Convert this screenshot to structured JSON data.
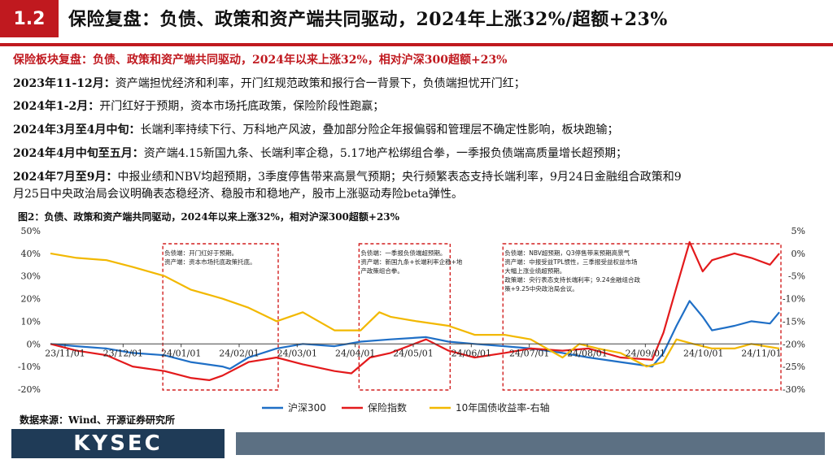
{
  "header": {
    "section_number": "1.2",
    "title": "保险复盘：负债、政策和资产端共同驱动，2024年上涨32%/超额+23%"
  },
  "summary_heading": "保险板块复盘：负债、政策和资产端共同驱动，2024年以来上涨32%，相对沪深300超额+23%",
  "paragraphs": [
    {
      "label": "2023年11-12月：",
      "text": "资产端担忧经济和利率，开门红规范政策和报行合一背景下，负债端担忧开门红；"
    },
    {
      "label": "2024年1-2月：",
      "text": "开门红好于预期，资本市场托底政策，保险阶段性跑赢；"
    },
    {
      "label": "2024年3月至4月中旬：",
      "text": "长端利率持续下行、万科地产风波，叠加部分险企年报偏弱和管理层不确定性影响，板块跑输；"
    },
    {
      "label": "2024年4月中旬至五月：",
      "text": "资产端4.15新国九条、长端利率企稳，5.17地产松绑组合拳，一季报负债端高质量增长超预期；"
    },
    {
      "label": "2024年7月至9月：",
      "text": "中报业绩和NBV均超预期，3季度停售带来高景气预期；央行频繁表态支持长端利率，9月24日金融组合政策和9",
      "text2": "月25日中央政治局会议明确表态稳经济、稳股市和稳地产，股市上涨驱动寿险beta弹性。"
    }
  ],
  "figure_title": "图2：负债、政策和资产端共同驱动，2024年以来上涨32%，相对沪深300超额+23%",
  "source": "数据来源：Wind、开源证券研究所",
  "footer": {
    "logo": "KYSEC"
  },
  "colors": {
    "accent": "#c0191f",
    "hs300": "#1f6fc6",
    "insurance": "#e31a1c",
    "bond": "#f2b800",
    "logo_bg": "#1f3b57",
    "footer_bar": "#5c7083"
  },
  "chart_data": {
    "type": "line",
    "x_ticks": [
      "23/11/01",
      "23/12/01",
      "24/01/01",
      "24/02/01",
      "24/03/01",
      "24/04/01",
      "24/05/01",
      "24/06/01",
      "24/07/01",
      "24/08/01",
      "24/09/01",
      "24/10/01",
      "24/11/01"
    ],
    "x_range": [
      "2023-11-01",
      "2024-11-25"
    ],
    "left_axis": {
      "ticks": [
        "50%",
        "40%",
        "30%",
        "20%",
        "10%",
        "0%",
        "-10%",
        "-20%"
      ],
      "range": [
        -20,
        50
      ]
    },
    "right_axis": {
      "ticks": [
        "5%",
        "0%",
        "-5%",
        "-10%",
        "-15%",
        "-20%",
        "-25%",
        "-30%"
      ],
      "range": [
        -30,
        5
      ]
    },
    "series": [
      {
        "name": "沪深300",
        "axis": "left",
        "color": "#1f6fc6",
        "points": [
          [
            "2023-11-01",
            0
          ],
          [
            "2023-11-15",
            -1
          ],
          [
            "2023-12-01",
            -2
          ],
          [
            "2023-12-15",
            -4
          ],
          [
            "2024-01-01",
            -5
          ],
          [
            "2024-01-15",
            -8
          ],
          [
            "2024-02-01",
            -10
          ],
          [
            "2024-02-05",
            -11
          ],
          [
            "2024-02-15",
            -6
          ],
          [
            "2024-03-01",
            -2
          ],
          [
            "2024-03-15",
            0
          ],
          [
            "2024-04-01",
            -1
          ],
          [
            "2024-04-15",
            1
          ],
          [
            "2024-05-01",
            2
          ],
          [
            "2024-05-20",
            3
          ],
          [
            "2024-06-01",
            1
          ],
          [
            "2024-06-15",
            0
          ],
          [
            "2024-07-01",
            -1
          ],
          [
            "2024-07-15",
            -2
          ],
          [
            "2024-08-01",
            -4
          ],
          [
            "2024-08-15",
            -6
          ],
          [
            "2024-09-01",
            -8
          ],
          [
            "2024-09-18",
            -10
          ],
          [
            "2024-09-24",
            -4
          ],
          [
            "2024-10-01",
            8
          ],
          [
            "2024-10-08",
            19
          ],
          [
            "2024-10-15",
            12
          ],
          [
            "2024-10-20",
            6
          ],
          [
            "2024-11-01",
            8
          ],
          [
            "2024-11-10",
            10
          ],
          [
            "2024-11-20",
            9
          ],
          [
            "2024-11-25",
            14
          ]
        ]
      },
      {
        "name": "保险指数",
        "axis": "left",
        "color": "#e31a1c",
        "points": [
          [
            "2023-11-01",
            0
          ],
          [
            "2023-11-15",
            -3
          ],
          [
            "2023-12-01",
            -5
          ],
          [
            "2023-12-15",
            -10
          ],
          [
            "2024-01-01",
            -12
          ],
          [
            "2024-01-15",
            -15
          ],
          [
            "2024-01-25",
            -16
          ],
          [
            "2024-02-01",
            -14
          ],
          [
            "2024-02-15",
            -8
          ],
          [
            "2024-03-01",
            -6
          ],
          [
            "2024-03-15",
            -9
          ],
          [
            "2024-04-01",
            -12
          ],
          [
            "2024-04-10",
            -13
          ],
          [
            "2024-04-20",
            -6
          ],
          [
            "2024-05-01",
            -4
          ],
          [
            "2024-05-20",
            2
          ],
          [
            "2024-06-01",
            -3
          ],
          [
            "2024-06-15",
            -6
          ],
          [
            "2024-07-01",
            -4
          ],
          [
            "2024-07-15",
            -2
          ],
          [
            "2024-08-01",
            -3
          ],
          [
            "2024-08-15",
            -2
          ],
          [
            "2024-09-01",
            -6
          ],
          [
            "2024-09-18",
            -7
          ],
          [
            "2024-09-24",
            5
          ],
          [
            "2024-10-01",
            25
          ],
          [
            "2024-10-08",
            45
          ],
          [
            "2024-10-15",
            32
          ],
          [
            "2024-10-20",
            37
          ],
          [
            "2024-11-01",
            40
          ],
          [
            "2024-11-10",
            38
          ],
          [
            "2024-11-20",
            35
          ],
          [
            "2024-11-25",
            40
          ]
        ]
      },
      {
        "name": "10年国债收益率-右轴",
        "axis": "right",
        "color": "#f2b800",
        "points": [
          [
            "2023-11-01",
            0
          ],
          [
            "2023-11-15",
            -1
          ],
          [
            "2023-12-01",
            -1.5
          ],
          [
            "2023-12-15",
            -3
          ],
          [
            "2024-01-01",
            -5
          ],
          [
            "2024-01-15",
            -8
          ],
          [
            "2024-02-01",
            -10
          ],
          [
            "2024-02-15",
            -12
          ],
          [
            "2024-03-01",
            -15
          ],
          [
            "2024-03-15",
            -13
          ],
          [
            "2024-04-01",
            -17
          ],
          [
            "2024-04-15",
            -17
          ],
          [
            "2024-04-25",
            -13
          ],
          [
            "2024-05-01",
            -14
          ],
          [
            "2024-05-15",
            -15
          ],
          [
            "2024-06-01",
            -16
          ],
          [
            "2024-06-15",
            -18
          ],
          [
            "2024-07-01",
            -18
          ],
          [
            "2024-07-15",
            -19
          ],
          [
            "2024-08-01",
            -23
          ],
          [
            "2024-08-10",
            -20
          ],
          [
            "2024-08-20",
            -21
          ],
          [
            "2024-09-01",
            -22
          ],
          [
            "2024-09-15",
            -25
          ],
          [
            "2024-09-24",
            -24
          ],
          [
            "2024-10-01",
            -19
          ],
          [
            "2024-10-10",
            -20
          ],
          [
            "2024-10-20",
            -21
          ],
          [
            "2024-11-01",
            -21
          ],
          [
            "2024-11-10",
            -20
          ],
          [
            "2024-11-25",
            -21
          ]
        ]
      }
    ],
    "annotations": [
      {
        "start": "2024-01-01",
        "end": "2024-03-01",
        "lines": [
          "负债端：开门红好于预期。",
          "资产端：资本市场托底政策托底。"
        ]
      },
      {
        "start": "2024-04-15",
        "end": "2024-06-01",
        "lines": [
          "负债端：一季报负债端超预期。",
          "资产端：新国九条+长端利率企稳+地",
          "产政策组合拳。"
        ]
      },
      {
        "start": "2024-07-01",
        "end": "2024-11-25",
        "lines": [
          "负债端：NBV超预期，Q3停售带来预期高景气",
          "资产端：中报受益TPL惯性，三季报受益权益市场",
          "大幅上涨业绩超预期。",
          "政策端：央行表态支持长端利率；9.24金融组合政",
          "策+9.25中央政治局会议。"
        ]
      }
    ],
    "legend": {
      "position": "bottom"
    }
  }
}
